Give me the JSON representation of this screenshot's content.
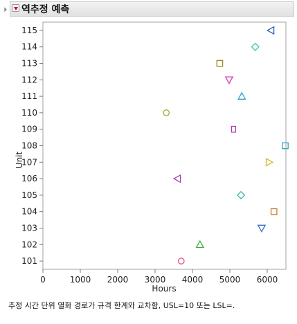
{
  "panel": {
    "title": "역추정 예측"
  },
  "chart_data": {
    "type": "scatter",
    "xlabel": "Hours",
    "ylabel": "Unit",
    "xlim": [
      0,
      6500
    ],
    "ylim": [
      100.5,
      115.5
    ],
    "xticks": [
      0,
      1000,
      2000,
      3000,
      4000,
      5000,
      6000
    ],
    "yticks": [
      101,
      102,
      103,
      104,
      105,
      106,
      107,
      108,
      109,
      110,
      111,
      112,
      113,
      114,
      115
    ],
    "grid": false,
    "points": [
      {
        "unit": 101,
        "hours": 3700,
        "marker": "circle",
        "color": "#e8507a"
      },
      {
        "unit": 102,
        "hours": 4200,
        "marker": "triangle-up",
        "color": "#3aae3a"
      },
      {
        "unit": 103,
        "hours": 5850,
        "marker": "triangle-down",
        "color": "#3a6fc4"
      },
      {
        "unit": 104,
        "hours": 6180,
        "marker": "square",
        "color": "#c9772b"
      },
      {
        "unit": 105,
        "hours": 5300,
        "marker": "diamond",
        "color": "#32b8a8"
      },
      {
        "unit": 106,
        "hours": 3600,
        "marker": "triangle-left",
        "color": "#b03ab8"
      },
      {
        "unit": 107,
        "hours": 6050,
        "marker": "triangle-right",
        "color": "#d8b52a"
      },
      {
        "unit": 108,
        "hours": 6500,
        "marker": "square",
        "color": "#2aa8b8"
      },
      {
        "unit": 109,
        "hours": 5100,
        "marker": "rect-tall",
        "color": "#b03ab8"
      },
      {
        "unit": 110,
        "hours": 3300,
        "marker": "circle",
        "color": "#9ab02a"
      },
      {
        "unit": 111,
        "hours": 5320,
        "marker": "triangle-up",
        "color": "#2aa8c8"
      },
      {
        "unit": 112,
        "hours": 4980,
        "marker": "triangle-down",
        "color": "#d83ab8"
      },
      {
        "unit": 113,
        "hours": 4730,
        "marker": "square",
        "color": "#9a8a1a"
      },
      {
        "unit": 114,
        "hours": 5680,
        "marker": "diamond",
        "color": "#3ac8a8"
      },
      {
        "unit": 115,
        "hours": 6100,
        "marker": "triangle-left",
        "color": "#2a5ab8"
      }
    ]
  },
  "footnote": "추정 시간 단위 열화 경로가 규격 한계와 교차함, USL=10 또는 LSL=."
}
